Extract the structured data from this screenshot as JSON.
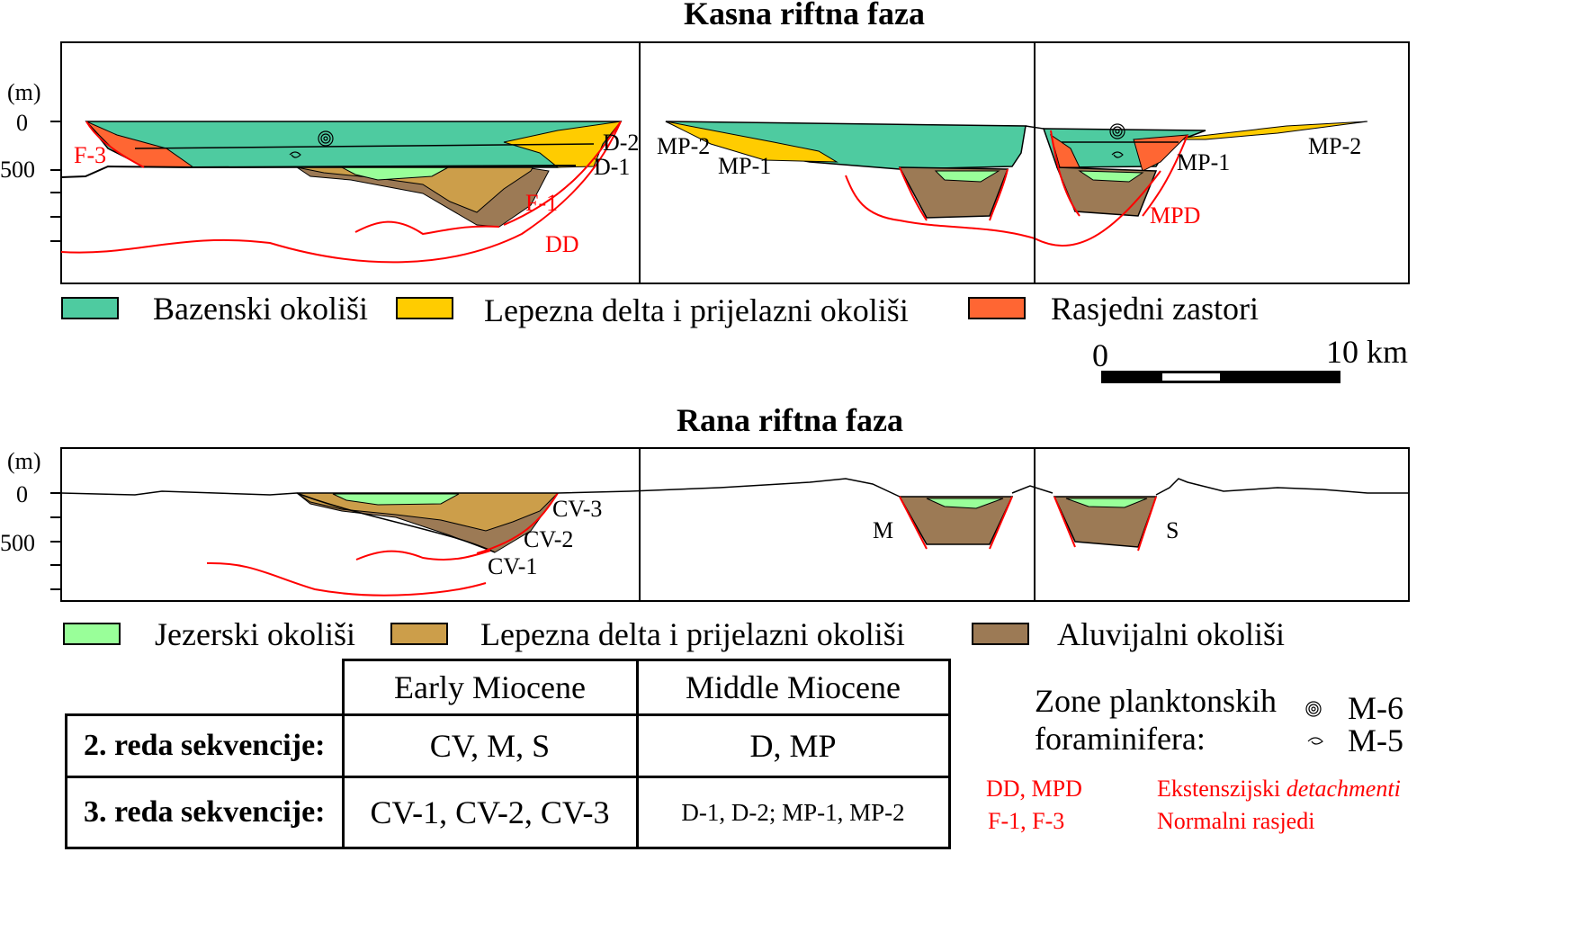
{
  "late_phase": {
    "title": "Kasna riftna faza",
    "y_unit": "(m)",
    "y_ticks": [
      "0",
      "500"
    ],
    "labels": {
      "f3": "F-3",
      "d2": "D-2",
      "d1": "D-1",
      "f1": "F-1",
      "dd": "DD",
      "mp2_left": "MP-2",
      "mp1_left": "MP-1",
      "mp1_right": "MP-1",
      "mp2_right": "MP-2",
      "mpd": "MPD"
    }
  },
  "late_legend": [
    {
      "label": "Bazenski okoliši",
      "color": "#4ecba0"
    },
    {
      "label": "Lepezna delta i prijelazni okoliši",
      "color": "#ffcc00"
    },
    {
      "label": "Rasjedni zastori",
      "color": "#ff6633"
    }
  ],
  "scale": {
    "start": "0",
    "end": "10 km"
  },
  "early_phase": {
    "title": "Rana riftna faza",
    "y_unit": "(m)",
    "y_ticks": [
      "0",
      "500"
    ],
    "labels": {
      "cv3": "CV-3",
      "cv2": "CV-2",
      "cv1": "CV-1",
      "m": "M",
      "s": "S"
    }
  },
  "early_legend": [
    {
      "label": "Jezerski okoliši",
      "color": "#99ff99"
    },
    {
      "label": "Lepezna delta i prijelazni okoliši",
      "color": "#cc9e4a"
    },
    {
      "label": "Aluvijalni okoliši",
      "color": "#9c7a55"
    }
  ],
  "sequence_table": {
    "headers": [
      "Early Miocene",
      "Middle Miocene"
    ],
    "rows": [
      {
        "label": "2. reda sekvencije:",
        "early": "CV, M, S",
        "middle": "D, MP"
      },
      {
        "label": "3. reda sekvencije:",
        "early": "CV-1, CV-2, CV-3",
        "middle": "D-1, D-2; MP-1, MP-2"
      }
    ]
  },
  "foraminifera": {
    "title_line1": "Zone planktonskih",
    "title_line2": "foraminifera:",
    "m6": "M-6",
    "m5": "M-5"
  },
  "fault_legend": [
    {
      "codes": "DD, MPD",
      "desc_plain": "Ekstenszijski ",
      "desc_italic": "detachmenti"
    },
    {
      "codes": "F-1, F-3",
      "desc_plain": "Normalni rasjedi",
      "desc_italic": ""
    }
  ],
  "colors": {
    "basin": "#4ecba0",
    "fan_delta": "#ffcc00",
    "fault_apron": "#ff6633",
    "lake": "#99ff99",
    "fan_delta_early": "#cc9e4a",
    "alluvial": "#9c7a55",
    "fault": "#ff0000"
  }
}
